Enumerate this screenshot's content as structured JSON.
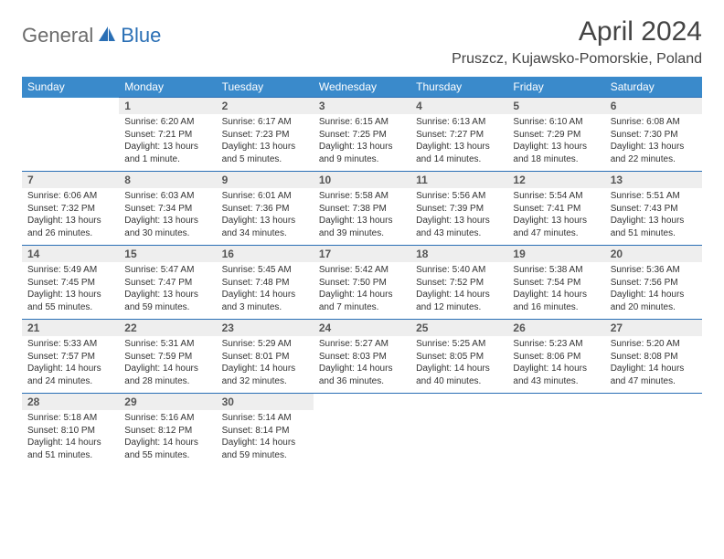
{
  "brand": {
    "part1": "General",
    "part2": "Blue"
  },
  "title": "April 2024",
  "location": "Pruszcz, Kujawsko-Pomorskie, Poland",
  "colors": {
    "header_bg": "#3a8acb",
    "accent": "#2a6fb5",
    "daynum_bg": "#eeeeee",
    "text": "#333333",
    "muted": "#6b6b6b"
  },
  "weekdays": [
    "Sunday",
    "Monday",
    "Tuesday",
    "Wednesday",
    "Thursday",
    "Friday",
    "Saturday"
  ],
  "weeks": [
    [
      {
        "num": "",
        "sunrise": "",
        "sunset": "",
        "daylight": ""
      },
      {
        "num": "1",
        "sunrise": "Sunrise: 6:20 AM",
        "sunset": "Sunset: 7:21 PM",
        "daylight": "Daylight: 13 hours and 1 minute."
      },
      {
        "num": "2",
        "sunrise": "Sunrise: 6:17 AM",
        "sunset": "Sunset: 7:23 PM",
        "daylight": "Daylight: 13 hours and 5 minutes."
      },
      {
        "num": "3",
        "sunrise": "Sunrise: 6:15 AM",
        "sunset": "Sunset: 7:25 PM",
        "daylight": "Daylight: 13 hours and 9 minutes."
      },
      {
        "num": "4",
        "sunrise": "Sunrise: 6:13 AM",
        "sunset": "Sunset: 7:27 PM",
        "daylight": "Daylight: 13 hours and 14 minutes."
      },
      {
        "num": "5",
        "sunrise": "Sunrise: 6:10 AM",
        "sunset": "Sunset: 7:29 PM",
        "daylight": "Daylight: 13 hours and 18 minutes."
      },
      {
        "num": "6",
        "sunrise": "Sunrise: 6:08 AM",
        "sunset": "Sunset: 7:30 PM",
        "daylight": "Daylight: 13 hours and 22 minutes."
      }
    ],
    [
      {
        "num": "7",
        "sunrise": "Sunrise: 6:06 AM",
        "sunset": "Sunset: 7:32 PM",
        "daylight": "Daylight: 13 hours and 26 minutes."
      },
      {
        "num": "8",
        "sunrise": "Sunrise: 6:03 AM",
        "sunset": "Sunset: 7:34 PM",
        "daylight": "Daylight: 13 hours and 30 minutes."
      },
      {
        "num": "9",
        "sunrise": "Sunrise: 6:01 AM",
        "sunset": "Sunset: 7:36 PM",
        "daylight": "Daylight: 13 hours and 34 minutes."
      },
      {
        "num": "10",
        "sunrise": "Sunrise: 5:58 AM",
        "sunset": "Sunset: 7:38 PM",
        "daylight": "Daylight: 13 hours and 39 minutes."
      },
      {
        "num": "11",
        "sunrise": "Sunrise: 5:56 AM",
        "sunset": "Sunset: 7:39 PM",
        "daylight": "Daylight: 13 hours and 43 minutes."
      },
      {
        "num": "12",
        "sunrise": "Sunrise: 5:54 AM",
        "sunset": "Sunset: 7:41 PM",
        "daylight": "Daylight: 13 hours and 47 minutes."
      },
      {
        "num": "13",
        "sunrise": "Sunrise: 5:51 AM",
        "sunset": "Sunset: 7:43 PM",
        "daylight": "Daylight: 13 hours and 51 minutes."
      }
    ],
    [
      {
        "num": "14",
        "sunrise": "Sunrise: 5:49 AM",
        "sunset": "Sunset: 7:45 PM",
        "daylight": "Daylight: 13 hours and 55 minutes."
      },
      {
        "num": "15",
        "sunrise": "Sunrise: 5:47 AM",
        "sunset": "Sunset: 7:47 PM",
        "daylight": "Daylight: 13 hours and 59 minutes."
      },
      {
        "num": "16",
        "sunrise": "Sunrise: 5:45 AM",
        "sunset": "Sunset: 7:48 PM",
        "daylight": "Daylight: 14 hours and 3 minutes."
      },
      {
        "num": "17",
        "sunrise": "Sunrise: 5:42 AM",
        "sunset": "Sunset: 7:50 PM",
        "daylight": "Daylight: 14 hours and 7 minutes."
      },
      {
        "num": "18",
        "sunrise": "Sunrise: 5:40 AM",
        "sunset": "Sunset: 7:52 PM",
        "daylight": "Daylight: 14 hours and 12 minutes."
      },
      {
        "num": "19",
        "sunrise": "Sunrise: 5:38 AM",
        "sunset": "Sunset: 7:54 PM",
        "daylight": "Daylight: 14 hours and 16 minutes."
      },
      {
        "num": "20",
        "sunrise": "Sunrise: 5:36 AM",
        "sunset": "Sunset: 7:56 PM",
        "daylight": "Daylight: 14 hours and 20 minutes."
      }
    ],
    [
      {
        "num": "21",
        "sunrise": "Sunrise: 5:33 AM",
        "sunset": "Sunset: 7:57 PM",
        "daylight": "Daylight: 14 hours and 24 minutes."
      },
      {
        "num": "22",
        "sunrise": "Sunrise: 5:31 AM",
        "sunset": "Sunset: 7:59 PM",
        "daylight": "Daylight: 14 hours and 28 minutes."
      },
      {
        "num": "23",
        "sunrise": "Sunrise: 5:29 AM",
        "sunset": "Sunset: 8:01 PM",
        "daylight": "Daylight: 14 hours and 32 minutes."
      },
      {
        "num": "24",
        "sunrise": "Sunrise: 5:27 AM",
        "sunset": "Sunset: 8:03 PM",
        "daylight": "Daylight: 14 hours and 36 minutes."
      },
      {
        "num": "25",
        "sunrise": "Sunrise: 5:25 AM",
        "sunset": "Sunset: 8:05 PM",
        "daylight": "Daylight: 14 hours and 40 minutes."
      },
      {
        "num": "26",
        "sunrise": "Sunrise: 5:23 AM",
        "sunset": "Sunset: 8:06 PM",
        "daylight": "Daylight: 14 hours and 43 minutes."
      },
      {
        "num": "27",
        "sunrise": "Sunrise: 5:20 AM",
        "sunset": "Sunset: 8:08 PM",
        "daylight": "Daylight: 14 hours and 47 minutes."
      }
    ],
    [
      {
        "num": "28",
        "sunrise": "Sunrise: 5:18 AM",
        "sunset": "Sunset: 8:10 PM",
        "daylight": "Daylight: 14 hours and 51 minutes."
      },
      {
        "num": "29",
        "sunrise": "Sunrise: 5:16 AM",
        "sunset": "Sunset: 8:12 PM",
        "daylight": "Daylight: 14 hours and 55 minutes."
      },
      {
        "num": "30",
        "sunrise": "Sunrise: 5:14 AM",
        "sunset": "Sunset: 8:14 PM",
        "daylight": "Daylight: 14 hours and 59 minutes."
      },
      {
        "num": "",
        "sunrise": "",
        "sunset": "",
        "daylight": ""
      },
      {
        "num": "",
        "sunrise": "",
        "sunset": "",
        "daylight": ""
      },
      {
        "num": "",
        "sunrise": "",
        "sunset": "",
        "daylight": ""
      },
      {
        "num": "",
        "sunrise": "",
        "sunset": "",
        "daylight": ""
      }
    ]
  ]
}
